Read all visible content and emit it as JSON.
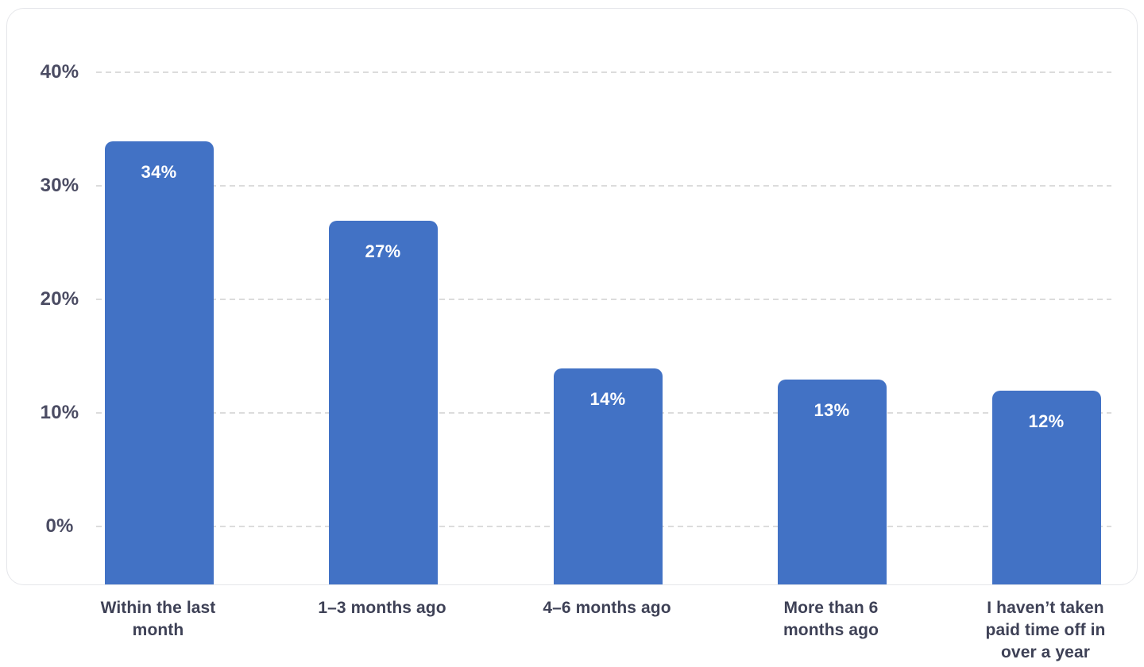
{
  "chart_data": {
    "type": "bar",
    "title": "",
    "xlabel": "",
    "ylabel": "",
    "categories": [
      "Within the last month",
      "1–3 months ago",
      "4–6 months ago",
      "More than 6 months ago",
      "I haven’t taken paid time off in over a year"
    ],
    "category_label_lines": [
      [
        "Within the last",
        "month"
      ],
      [
        "1–3 months ago"
      ],
      [
        "4–6 months ago"
      ],
      [
        "More than 6",
        "months ago"
      ],
      [
        "I haven’t taken",
        "paid time off in",
        "over a year"
      ]
    ],
    "values": [
      34,
      27,
      14,
      13,
      12
    ],
    "data_labels": [
      "34%",
      "27%",
      "14%",
      "13%",
      "12%"
    ],
    "y_ticks": [
      {
        "value": 40,
        "label": "40%"
      },
      {
        "value": 30,
        "label": "30%"
      },
      {
        "value": 20,
        "label": "20%"
      },
      {
        "value": 10,
        "label": "10%"
      },
      {
        "value": 0,
        "label": "0%"
      }
    ],
    "ylim_shown": [
      -5,
      45
    ],
    "grid": "horizontal-dashed",
    "legend": "none",
    "colors": {
      "bar": "#4272c5",
      "bar_label_text": "#ffffff",
      "y_tick_text": "#4b4c63",
      "x_tick_text": "#3e4156",
      "gridline": "#dcdcdc",
      "card_border": "#e5e6ea",
      "card_background": "#ffffff",
      "page_background": "#ffffff"
    }
  }
}
